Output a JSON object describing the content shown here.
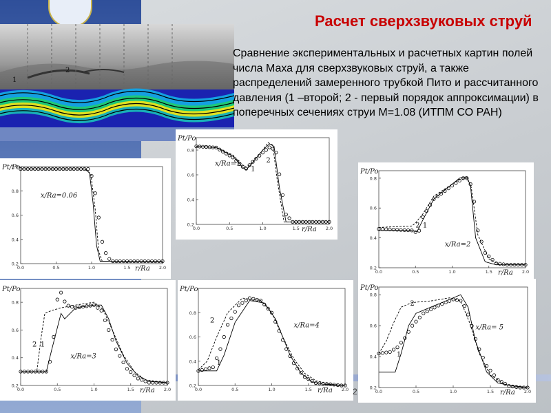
{
  "title": "Расчет сверхзвуковых струй",
  "description": "Сравнение экспериментальных и расчетных картин полей числа Маха для сверхзвуковых струй, а также распределений замеренного трубкой Пито и рассчитанного давления (1 –второй; 2 - первый порядок аппроксимации) в поперечных сечениях струи M=1.08 (ИТПМ СО РАН)",
  "page_number": "2",
  "flow_image": {
    "label_1": "1",
    "label_2": "2"
  },
  "colors": {
    "title": "#c80000",
    "sidebar": "#3a5aa5",
    "curve": "#000000"
  },
  "chart_data": [
    {
      "type": "line",
      "annotation": "x/Ra=0.06",
      "xlabel": "r/Ra",
      "ylabel": "Pt/Po",
      "xlim": [
        0,
        2
      ],
      "ylim": [
        0.2,
        1
      ],
      "xticks": [
        "0.0",
        "0.5",
        "1.0",
        "1.5",
        "2.0"
      ],
      "yticks": [
        "0.2",
        "0.4",
        "0.6",
        "0.8",
        "1.0"
      ],
      "series": [
        {
          "style": "solid",
          "x": [
            0,
            0.9,
            0.97,
            1.02,
            1.07,
            1.12,
            2
          ],
          "y": [
            0.98,
            0.98,
            0.95,
            0.7,
            0.35,
            0.22,
            0.22
          ]
        },
        {
          "style": "dashed",
          "x": [
            0,
            0.92,
            0.99,
            1.05,
            1.1,
            1.15,
            2
          ],
          "y": [
            0.98,
            0.98,
            0.93,
            0.65,
            0.3,
            0.22,
            0.22
          ]
        },
        {
          "style": "markers",
          "x": [
            0,
            0.95,
            1.02,
            1.08,
            1.15,
            1.22,
            1.3,
            2
          ],
          "y": [
            0.98,
            0.98,
            0.9,
            0.66,
            0.38,
            0.25,
            0.22,
            0.22
          ]
        }
      ],
      "curve_labels": []
    },
    {
      "type": "line",
      "annotation": "x/Ra=1",
      "xlabel": "r/Ra",
      "ylabel": "Pt/Po",
      "xlim": [
        0,
        2
      ],
      "ylim": [
        0.2,
        0.9
      ],
      "xticks": [
        "0.0",
        "0.5",
        "1.0",
        "1.5",
        "2.0"
      ],
      "yticks": [
        "0.2",
        "0.4",
        "0.6",
        "0.8"
      ],
      "series": [
        {
          "style": "solid",
          "x": [
            0,
            0.3,
            0.55,
            0.7,
            0.75,
            0.82,
            1.0,
            1.1,
            1.17,
            1.25,
            1.35,
            2
          ],
          "y": [
            0.83,
            0.82,
            0.75,
            0.66,
            0.64,
            0.68,
            0.8,
            0.85,
            0.83,
            0.5,
            0.22,
            0.22
          ]
        },
        {
          "style": "dashed",
          "x": [
            0,
            0.3,
            0.55,
            0.7,
            0.76,
            0.84,
            1.0,
            1.08,
            1.15,
            1.22,
            1.32,
            2
          ],
          "y": [
            0.83,
            0.82,
            0.76,
            0.68,
            0.66,
            0.7,
            0.8,
            0.86,
            0.84,
            0.55,
            0.22,
            0.22
          ]
        },
        {
          "style": "markers",
          "x": [
            0,
            0.3,
            0.55,
            0.68,
            0.75,
            0.82,
            1.0,
            1.12,
            1.2,
            1.28,
            1.35,
            1.45,
            2
          ],
          "y": [
            0.83,
            0.82,
            0.74,
            0.67,
            0.65,
            0.69,
            0.78,
            0.83,
            0.78,
            0.5,
            0.28,
            0.22,
            0.22
          ]
        }
      ],
      "curve_labels": [
        {
          "text": "1",
          "x": 0.82,
          "y": 0.63
        },
        {
          "text": "2",
          "x": 1.05,
          "y": 0.7
        }
      ]
    },
    {
      "type": "line",
      "annotation": "x/Ra=2",
      "xlabel": "r/Ra",
      "ylabel": "Pt/Po",
      "xlim": [
        0,
        2
      ],
      "ylim": [
        0.2,
        0.85
      ],
      "xticks": [
        "0.0",
        "0.5",
        "1.0",
        "1.5",
        "2.0"
      ],
      "yticks": [
        "0.2",
        "0.4",
        "0.6",
        "0.8"
      ],
      "series": [
        {
          "style": "solid",
          "x": [
            0,
            0.45,
            0.52,
            0.6,
            0.75,
            1.0,
            1.1,
            1.2,
            1.25,
            1.32,
            1.45,
            1.6,
            2
          ],
          "y": [
            0.45,
            0.45,
            0.44,
            0.52,
            0.66,
            0.76,
            0.8,
            0.81,
            0.75,
            0.4,
            0.24,
            0.22,
            0.22
          ]
        },
        {
          "style": "dashed",
          "x": [
            0,
            0.45,
            0.5,
            0.6,
            0.75,
            1.0,
            1.1,
            1.2,
            1.26,
            1.35,
            1.5,
            1.65,
            2
          ],
          "y": [
            0.47,
            0.48,
            0.5,
            0.56,
            0.68,
            0.76,
            0.79,
            0.8,
            0.74,
            0.42,
            0.26,
            0.22,
            0.22
          ]
        },
        {
          "style": "markers",
          "x": [
            0,
            0.45,
            0.54,
            0.6,
            0.75,
            1.0,
            1.15,
            1.22,
            1.28,
            1.35,
            1.45,
            1.6,
            1.75,
            2
          ],
          "y": [
            0.46,
            0.45,
            0.43,
            0.54,
            0.66,
            0.75,
            0.8,
            0.8,
            0.72,
            0.45,
            0.3,
            0.23,
            0.22,
            0.22
          ]
        }
      ],
      "curve_labels": [
        {
          "text": "2",
          "x": 0.5,
          "y": 0.47
        },
        {
          "text": "1",
          "x": 0.6,
          "y": 0.47
        }
      ]
    },
    {
      "type": "line",
      "annotation": "x/Ra=3",
      "xlabel": "r/Ra",
      "ylabel": "Pt/Po",
      "xlim": [
        0,
        2
      ],
      "ylim": [
        0.2,
        0.9
      ],
      "xticks": [
        "0.0",
        "0.5",
        "1.0",
        "1.5",
        "2.0"
      ],
      "yticks": [
        "0.2",
        "0.4",
        "0.6",
        "0.8"
      ],
      "series": [
        {
          "style": "solid",
          "x": [
            0,
            0.35,
            0.42,
            0.55,
            0.6,
            0.75,
            1.0,
            1.1,
            1.2,
            1.3,
            1.45,
            1.6,
            1.75,
            2
          ],
          "y": [
            0.3,
            0.3,
            0.45,
            0.72,
            0.68,
            0.76,
            0.78,
            0.78,
            0.68,
            0.52,
            0.36,
            0.27,
            0.23,
            0.22
          ]
        },
        {
          "style": "dashed",
          "x": [
            0,
            0.22,
            0.28,
            0.33,
            0.42,
            0.55,
            0.75,
            1.0,
            1.12,
            1.25,
            1.4,
            1.55,
            1.7,
            2
          ],
          "y": [
            0.3,
            0.3,
            0.55,
            0.72,
            0.74,
            0.76,
            0.78,
            0.8,
            0.75,
            0.6,
            0.42,
            0.3,
            0.24,
            0.22
          ]
        },
        {
          "style": "markers",
          "x": [
            0,
            0.38,
            0.45,
            0.5,
            0.55,
            0.62,
            0.75,
            1.0,
            1.1,
            1.2,
            1.3,
            1.45,
            1.6,
            1.75,
            1.9
          ],
          "y": [
            0.3,
            0.3,
            0.55,
            0.82,
            0.87,
            0.78,
            0.76,
            0.78,
            0.74,
            0.6,
            0.46,
            0.32,
            0.25,
            0.22,
            0.22
          ]
        }
      ],
      "curve_labels": [
        {
          "text": "2",
          "x": 0.16,
          "y": 0.48
        },
        {
          "text": "1",
          "x": 0.27,
          "y": 0.48
        }
      ]
    },
    {
      "type": "line",
      "annotation": "x/Ra=4",
      "xlabel": "r/Ra",
      "ylabel": "Pt/Po",
      "xlim": [
        0,
        2
      ],
      "ylim": [
        0.2,
        1
      ],
      "xticks": [
        "0.0",
        "0.5",
        "1.0",
        "1.5",
        "2.0"
      ],
      "yticks": [
        "0.2",
        "0.4",
        "0.6",
        "0.8"
      ],
      "series": [
        {
          "style": "solid",
          "x": [
            0,
            0.25,
            0.35,
            0.5,
            0.7,
            0.9,
            1.05,
            1.15,
            1.25,
            1.4,
            1.55,
            1.7,
            2
          ],
          "y": [
            0.32,
            0.32,
            0.45,
            0.72,
            0.9,
            0.88,
            0.75,
            0.6,
            0.45,
            0.3,
            0.23,
            0.21,
            0.2
          ]
        },
        {
          "style": "dashed",
          "x": [
            0,
            0.12,
            0.25,
            0.4,
            0.6,
            0.85,
            1.0,
            1.15,
            1.3,
            1.45,
            1.6,
            1.8,
            2
          ],
          "y": [
            0.33,
            0.4,
            0.6,
            0.8,
            0.92,
            0.9,
            0.8,
            0.6,
            0.42,
            0.3,
            0.24,
            0.21,
            0.2
          ]
        },
        {
          "style": "markers",
          "x": [
            0,
            0.2,
            0.3,
            0.4,
            0.55,
            0.7,
            0.85,
            1.0,
            1.1,
            1.2,
            1.32,
            1.45,
            1.6,
            1.8,
            1.95
          ],
          "y": [
            0.32,
            0.35,
            0.5,
            0.7,
            0.86,
            0.92,
            0.9,
            0.8,
            0.65,
            0.5,
            0.36,
            0.27,
            0.22,
            0.21,
            0.2
          ]
        }
      ],
      "curve_labels": [
        {
          "text": "2",
          "x": 0.16,
          "y": 0.72
        },
        {
          "text": "1",
          "x": 0.25,
          "y": 0.37
        }
      ]
    },
    {
      "type": "line",
      "annotation": "x/Ra= 5",
      "xlabel": "r/Ra",
      "ylabel": "Pt/Po",
      "xlim": [
        0,
        2
      ],
      "ylim": [
        0.2,
        0.85
      ],
      "xticks": [
        "0.0",
        "0.5",
        "1.0",
        "1.5",
        "2.0"
      ],
      "yticks": [
        "0.2",
        "0.4",
        "0.6",
        "0.8"
      ],
      "series": [
        {
          "style": "solid",
          "x": [
            0,
            0.22,
            0.3,
            0.4,
            0.5,
            0.7,
            0.95,
            1.1,
            1.2,
            1.3,
            1.45,
            1.6,
            1.8,
            2
          ],
          "y": [
            0.3,
            0.3,
            0.42,
            0.6,
            0.68,
            0.72,
            0.77,
            0.8,
            0.72,
            0.5,
            0.3,
            0.23,
            0.21,
            0.2
          ]
        },
        {
          "style": "dashed",
          "x": [
            0,
            0.1,
            0.2,
            0.3,
            0.45,
            0.7,
            0.95,
            1.1,
            1.22,
            1.35,
            1.5,
            1.7,
            2
          ],
          "y": [
            0.42,
            0.5,
            0.62,
            0.72,
            0.75,
            0.76,
            0.78,
            0.76,
            0.62,
            0.42,
            0.28,
            0.22,
            0.2
          ]
        },
        {
          "style": "markers",
          "x": [
            0,
            0.15,
            0.25,
            0.35,
            0.45,
            0.6,
            0.8,
            1.0,
            1.12,
            1.22,
            1.32,
            1.45,
            1.6,
            1.75,
            1.9
          ],
          "y": [
            0.42,
            0.43,
            0.46,
            0.52,
            0.6,
            0.68,
            0.73,
            0.77,
            0.76,
            0.65,
            0.48,
            0.34,
            0.25,
            0.21,
            0.2
          ]
        }
      ],
      "curve_labels": [
        {
          "text": "2",
          "x": 0.42,
          "y": 0.73
        },
        {
          "text": "1",
          "x": 0.24,
          "y": 0.4
        }
      ]
    }
  ]
}
